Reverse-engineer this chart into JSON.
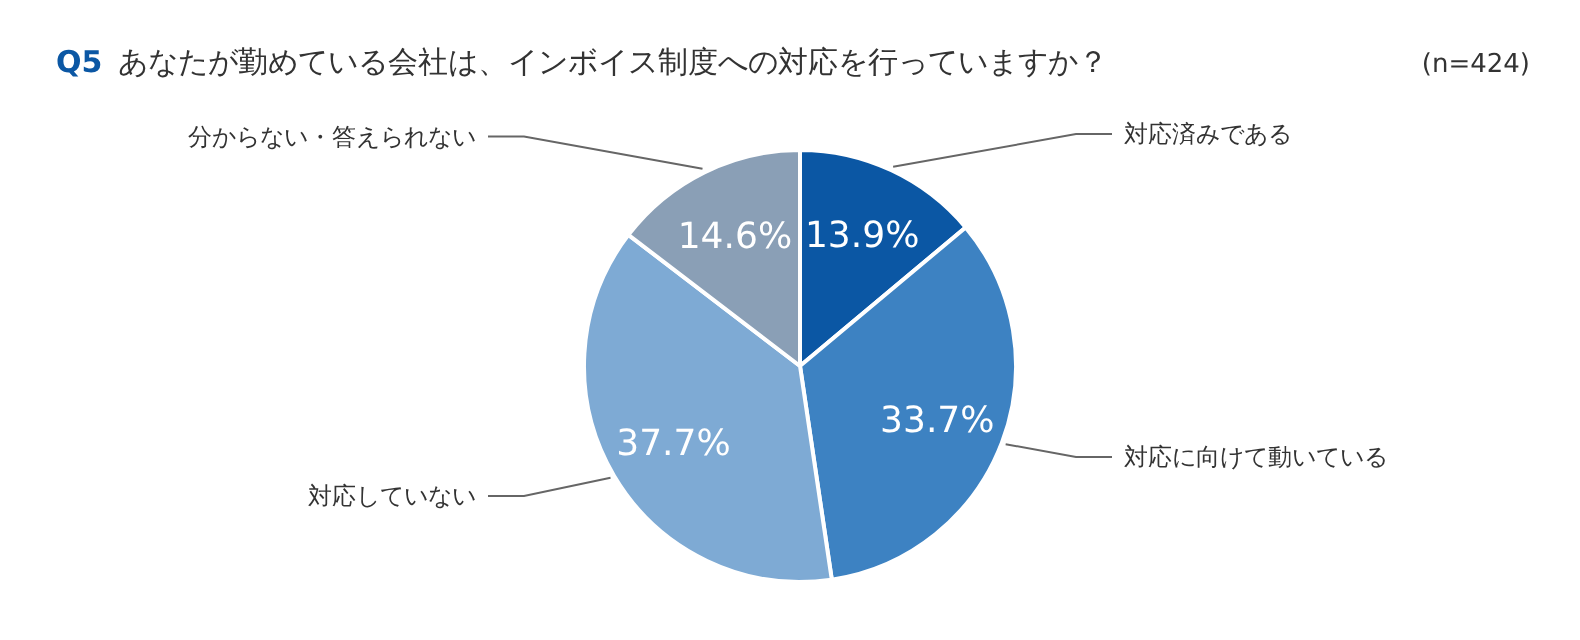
{
  "chart_data": {
    "type": "pie",
    "title": "Q5 あなたが勤めている会社は、インボイス制度への対応を行っていますか？",
    "annotations": [
      "(n=424)"
    ],
    "categories": [
      "対応済みである",
      "対応に向けて動いている",
      "対応していない",
      "分からない・答えられない"
    ],
    "values": [
      13.9,
      33.7,
      37.7,
      14.6
    ],
    "colors": [
      "#0b57a4",
      "#3d82c2",
      "#7eaad4",
      "#8a9fb6"
    ],
    "value_labels": [
      "13.9%",
      "33.7%",
      "37.7%",
      "14.6%"
    ]
  }
}
